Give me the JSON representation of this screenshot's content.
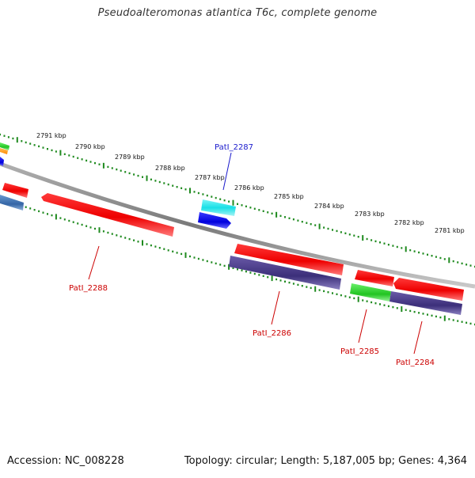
{
  "header": {
    "title": "Pseudoalteromonas atlantica T6c, complete genome"
  },
  "footer": {
    "accession": "Accession: NC_008228",
    "summary": "Topology: circular; Length: 5,187,005 bp; Genes: 4,364"
  },
  "colors": {
    "backbone": "#8c8c8c",
    "tick": "#1f8a1f",
    "tick_label": "#111111",
    "gene_label": "#cc0000",
    "gene_label_highlight": "#1a1acc",
    "cds_red": "#ff1a1a",
    "rna_cyan": "#19e0e6",
    "blue": "#1010ee",
    "purple": "#4b3c8c",
    "green": "#2ad02a",
    "steelblue": "#3d74b3",
    "orange": "#ff9a1a"
  },
  "ticks": [
    {
      "label": "2791 kbp"
    },
    {
      "label": "2790 kbp"
    },
    {
      "label": "2789 kbp"
    },
    {
      "label": "2788 kbp"
    },
    {
      "label": "2787 kbp"
    },
    {
      "label": "2786 kbp"
    },
    {
      "label": "2785 kbp"
    },
    {
      "label": "2784 kbp"
    },
    {
      "label": "2783 kbp"
    },
    {
      "label": "2782 kbp"
    },
    {
      "label": "2781 kbp"
    }
  ],
  "genes": [
    {
      "label": "PatI_2288"
    },
    {
      "label": "PatI_2287"
    },
    {
      "label": "PatI_2286"
    },
    {
      "label": "PatI_2285"
    },
    {
      "label": "PatI_2284"
    }
  ]
}
